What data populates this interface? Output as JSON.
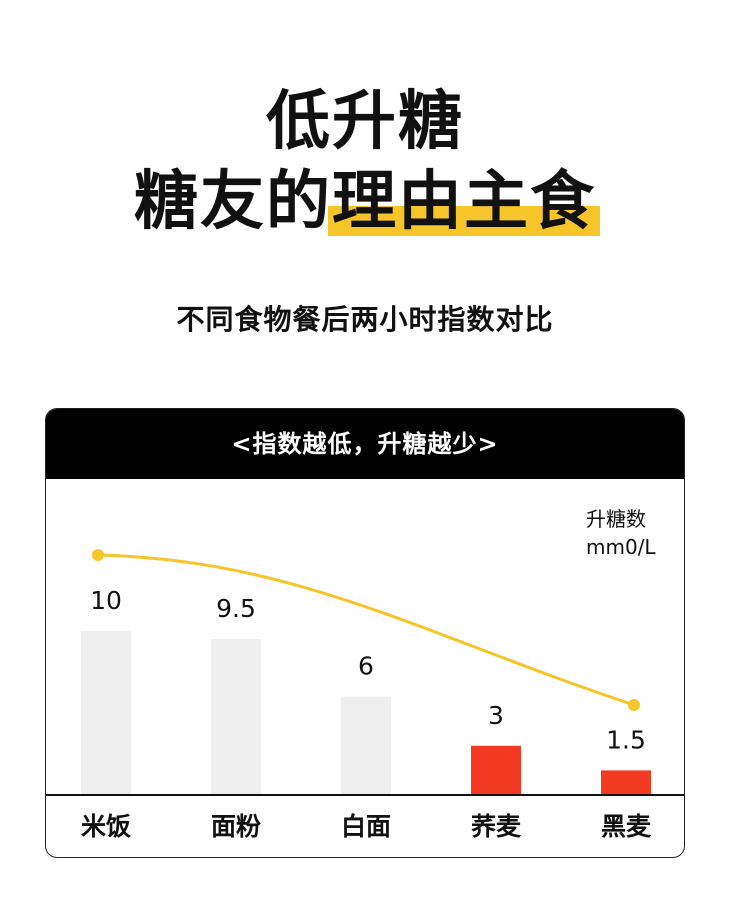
{
  "header": {
    "title_line1": "低升糖",
    "title_line2_plain": "糖友的",
    "title_line2_highlight": "理由主食",
    "subtitle": "不同食物餐后两小时指数对比"
  },
  "card": {
    "banner": "<指数越低，升糖越少>",
    "unit_line1": "升糖数",
    "unit_line2": "mm0/L"
  },
  "colors": {
    "bar_high": "#EFEFEF",
    "bar_low": "#F23A22",
    "curve": "#F5C52A",
    "highlight": "#F5C52A"
  },
  "chart_data": {
    "type": "bar",
    "categories": [
      "米饭",
      "面粉",
      "白面",
      "荞麦",
      "黑麦"
    ],
    "values": [
      10,
      9.5,
      6,
      3,
      1.5
    ],
    "value_labels": [
      "10",
      "9.5",
      "6",
      "3",
      "1.5"
    ],
    "highlighted": [
      false,
      false,
      false,
      true,
      true
    ],
    "ylim": [
      0,
      12.5
    ],
    "overlay": "trend-curve",
    "grid": false,
    "title": "<指数越低，升糖越少>",
    "ylabel": "升糖数 mm0/L"
  }
}
